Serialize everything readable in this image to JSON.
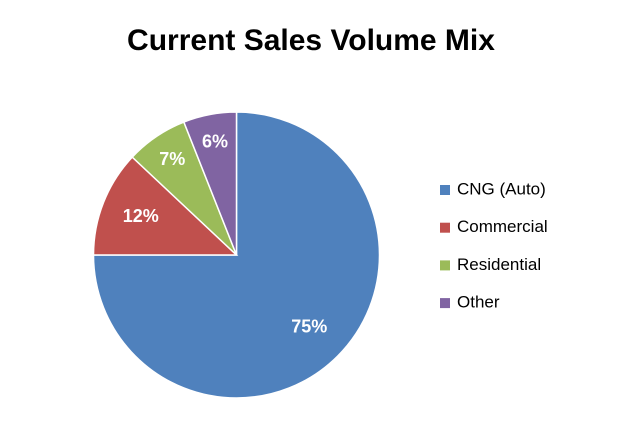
{
  "chart_data": {
    "type": "pie",
    "title": "Current Sales Volume Mix",
    "categories": [
      "CNG (Auto)",
      "Commercial",
      "Residential",
      "Other"
    ],
    "values": [
      75,
      12,
      7,
      6
    ],
    "value_labels": [
      "75%",
      "12%",
      "7%",
      "6%"
    ],
    "colors": [
      "#4f81bd",
      "#c0504d",
      "#9bbb59",
      "#8064a2"
    ],
    "legend": "right"
  }
}
